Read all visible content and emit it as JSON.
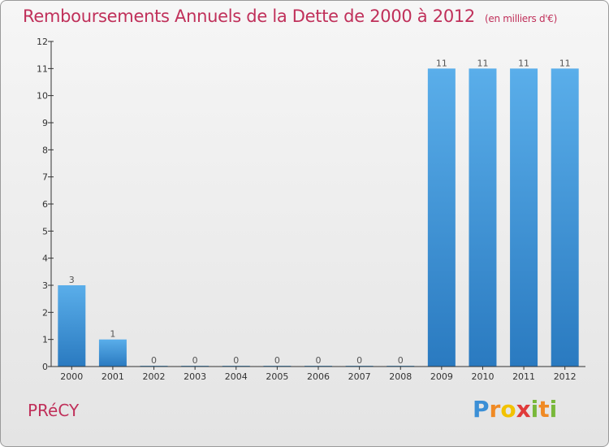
{
  "title": "Remboursements Annuels de la Dette de 2000 à 2012",
  "unit": "(en milliers d'€)",
  "town": "PRéCY",
  "logo": "Proxiti",
  "colors": {
    "title": "#c0305a",
    "bar_light": "#5aaeea",
    "bar_dark": "#2a7ac0",
    "axis": "#333333"
  },
  "chart_data": {
    "type": "bar",
    "title": "Remboursements Annuels de la Dette de 2000 à 2012",
    "subtitle": "(en milliers d'€)",
    "xlabel": "",
    "ylabel": "",
    "categories": [
      "2000",
      "2001",
      "2002",
      "2003",
      "2004",
      "2005",
      "2006",
      "2007",
      "2008",
      "2009",
      "2010",
      "2011",
      "2012"
    ],
    "values": [
      3,
      1,
      0,
      0,
      0,
      0,
      0,
      0,
      0,
      11,
      11,
      11,
      11
    ],
    "data_labels": [
      "3",
      "1",
      "0",
      "0",
      "0",
      "0",
      "0",
      "0",
      "0",
      "11",
      "11",
      "11",
      "11"
    ],
    "ylim": [
      0,
      12
    ],
    "yticks": [
      0,
      1,
      2,
      3,
      4,
      5,
      6,
      7,
      8,
      9,
      10,
      11,
      12
    ],
    "grid": false,
    "legend": "none"
  }
}
